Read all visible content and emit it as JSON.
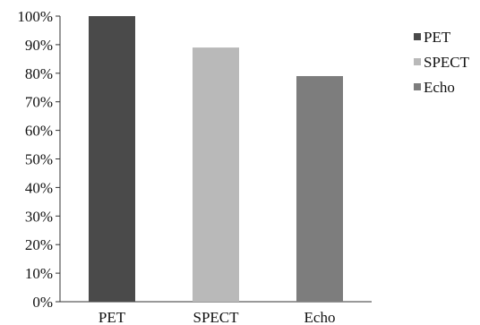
{
  "chart_data": {
    "type": "bar",
    "title": "",
    "xlabel": "",
    "ylabel": "",
    "categories": [
      "PET",
      "SPECT",
      "Echo"
    ],
    "values": [
      100,
      89,
      79
    ],
    "colors": [
      "#4a4a4a",
      "#b9b9b9",
      "#7d7d7d"
    ],
    "ylim": [
      0,
      100
    ],
    "yticks": [
      0,
      10,
      20,
      30,
      40,
      50,
      60,
      70,
      80,
      90,
      100
    ],
    "ytick_labels": [
      "0%",
      "10%",
      "20%",
      "30%",
      "40%",
      "50%",
      "60%",
      "70%",
      "80%",
      "90%",
      "100%"
    ],
    "grid": false,
    "legend": {
      "placement": "right",
      "entries": [
        "PET",
        "SPECT",
        "Echo"
      ]
    }
  }
}
